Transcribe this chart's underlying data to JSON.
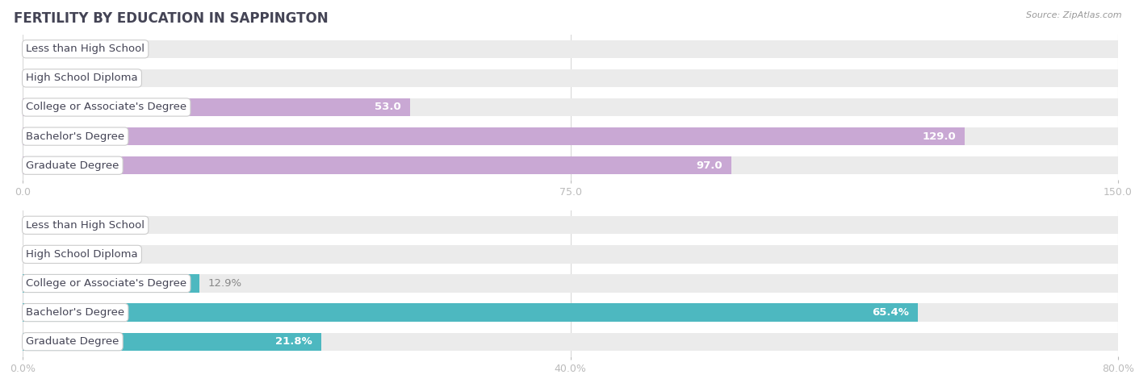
{
  "title": "FERTILITY BY EDUCATION IN SAPPINGTON",
  "source": "Source: ZipAtlas.com",
  "top_chart": {
    "categories": [
      "Less than High School",
      "High School Diploma",
      "College or Associate's Degree",
      "Bachelor's Degree",
      "Graduate Degree"
    ],
    "values": [
      0.0,
      0.0,
      53.0,
      129.0,
      97.0
    ],
    "bar_color": "#c9a8d4",
    "label_color_inside": "#ffffff",
    "label_color_outside": "#888888",
    "xlim": [
      0,
      150
    ],
    "xticks": [
      0.0,
      75.0,
      150.0
    ],
    "xtick_labels": [
      "0.0",
      "75.0",
      "150.0"
    ]
  },
  "bottom_chart": {
    "categories": [
      "Less than High School",
      "High School Diploma",
      "College or Associate's Degree",
      "Bachelor's Degree",
      "Graduate Degree"
    ],
    "values": [
      0.0,
      0.0,
      12.9,
      65.4,
      21.8
    ],
    "bar_color": "#4db8c0",
    "label_color_inside": "#ffffff",
    "label_color_outside": "#888888",
    "xlim": [
      0,
      80
    ],
    "xticks": [
      0.0,
      40.0,
      80.0
    ],
    "xtick_labels": [
      "0.0%",
      "40.0%",
      "80.0%"
    ]
  },
  "background_color": "#ffffff",
  "bar_bg_color": "#ebebeb",
  "label_font_size": 9.5,
  "category_font_size": 9.5,
  "title_font_size": 12,
  "bar_height": 0.62,
  "title_color": "#444455",
  "source_color": "#999999",
  "tick_color": "#aaaaaa",
  "grid_color": "#d8d8d8"
}
